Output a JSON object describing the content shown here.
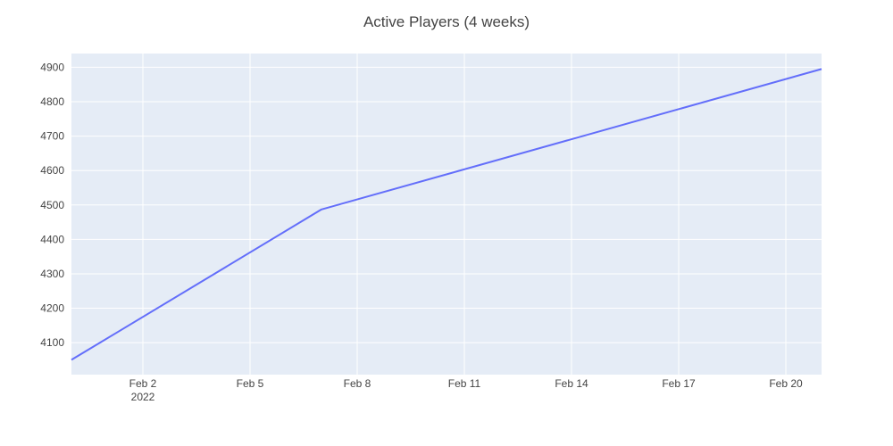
{
  "chart_data": {
    "type": "line",
    "title": "Active Players (4 weeks)",
    "xlabel": "",
    "ylabel": "",
    "x_tick_labels": [
      "Feb 2",
      "Feb 5",
      "Feb 8",
      "Feb 11",
      "Feb 14",
      "Feb 17",
      "Feb 20"
    ],
    "x_tick_dates": [
      "2022-02-02",
      "2022-02-05",
      "2022-02-08",
      "2022-02-11",
      "2022-02-14",
      "2022-02-17",
      "2022-02-20"
    ],
    "x_year_label": "2022",
    "y_ticks": [
      4100,
      4200,
      4300,
      4400,
      4500,
      4600,
      4700,
      4800,
      4900
    ],
    "xlim": [
      "2022-01-31",
      "2022-02-21"
    ],
    "ylim": [
      4007,
      4940
    ],
    "grid": true,
    "line_color": "#636efa",
    "plot_background": "#e5ecf6",
    "grid_color": "#ffffff",
    "series": [
      {
        "x": [
          "2022-01-31",
          "2022-02-07",
          "2022-02-21"
        ],
        "values": [
          4050,
          4487,
          4895
        ]
      }
    ]
  }
}
